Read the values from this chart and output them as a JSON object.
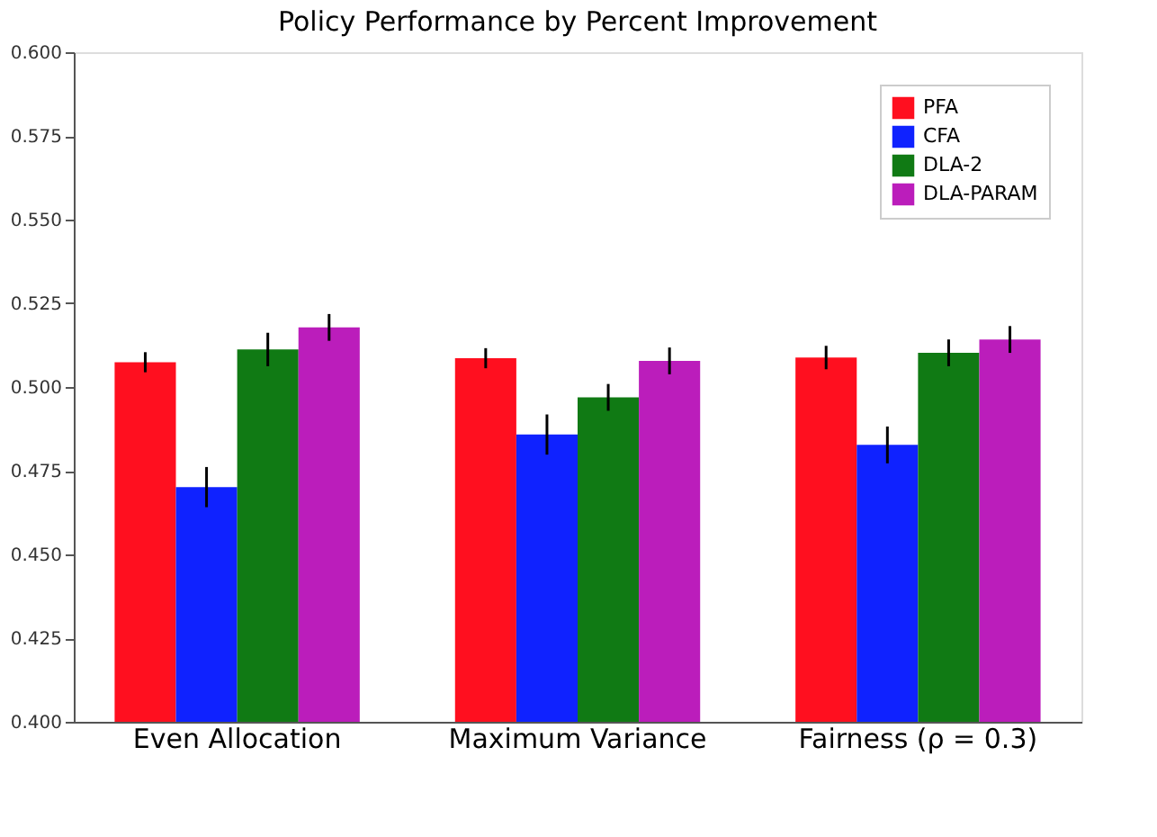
{
  "chart_data": {
    "type": "bar",
    "title": "Policy Performance by Percent Improvement",
    "categories": [
      "Even Allocation",
      "Maximum Variance",
      "Fairness (ρ = 0.3)"
    ],
    "series": [
      {
        "name": "PFA",
        "color": "#ff0f1f",
        "values": [
          0.5074,
          0.5086,
          0.5088
        ],
        "errors": [
          0.003,
          0.003,
          0.0035
        ]
      },
      {
        "name": "CFA",
        "color": "#0f22ff",
        "values": [
          0.4701,
          0.4858,
          0.4827
        ],
        "errors": [
          0.006,
          0.006,
          0.0055
        ]
      },
      {
        "name": "DLA-2",
        "color": "#107a14",
        "values": [
          0.5112,
          0.4969,
          0.5102
        ],
        "errors": [
          0.005,
          0.004,
          0.004
        ]
      },
      {
        "name": "DLA-PARAM",
        "color": "#bb1dbb",
        "values": [
          0.5178,
          0.5078,
          0.5142
        ],
        "errors": [
          0.004,
          0.004,
          0.004
        ]
      }
    ],
    "ylim": [
      0.4,
      0.6
    ],
    "yticks": [
      {
        "value": 0.4,
        "label": "0.400"
      },
      {
        "value": 0.425,
        "label": "0.425"
      },
      {
        "value": 0.45,
        "label": "0.450"
      },
      {
        "value": 0.475,
        "label": "0.475"
      },
      {
        "value": 0.5,
        "label": "0.500"
      },
      {
        "value": 0.525,
        "label": "0.525"
      },
      {
        "value": 0.55,
        "label": "0.550"
      },
      {
        "value": 0.575,
        "label": "0.575"
      },
      {
        "value": 0.6,
        "label": "0.600"
      }
    ],
    "grid": false,
    "legend": "top right"
  }
}
